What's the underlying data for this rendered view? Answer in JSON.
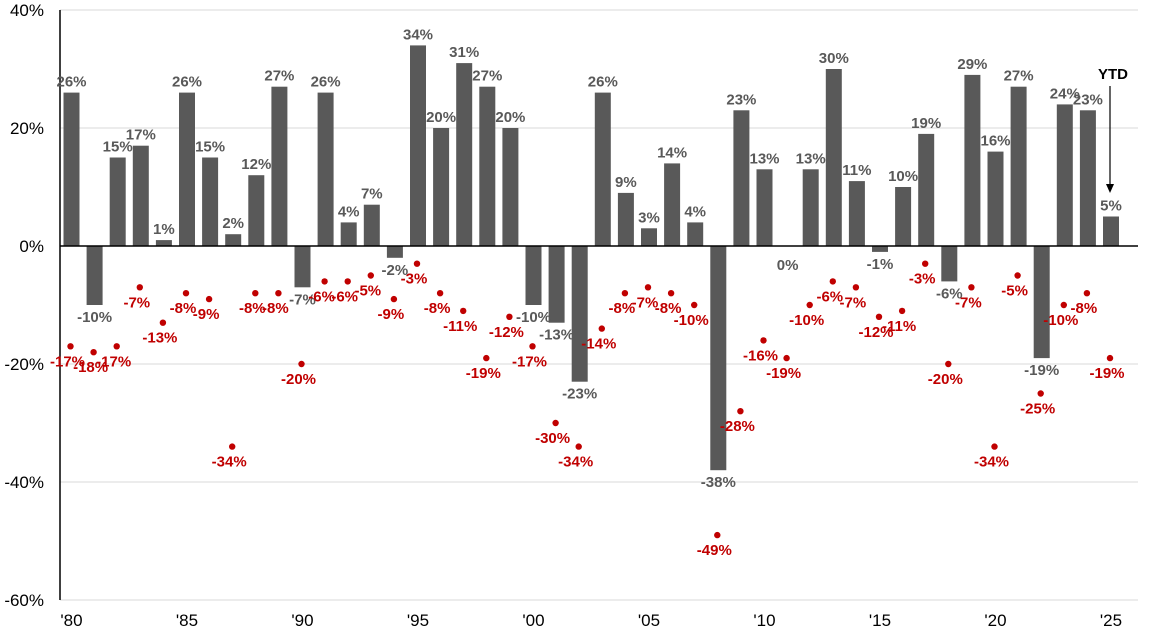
{
  "chart_data": {
    "type": "bar",
    "x": [
      1980,
      1981,
      1982,
      1983,
      1984,
      1985,
      1986,
      1987,
      1988,
      1989,
      1990,
      1991,
      1992,
      1993,
      1994,
      1995,
      1996,
      1997,
      1998,
      1999,
      2000,
      2001,
      2002,
      2003,
      2004,
      2005,
      2006,
      2007,
      2008,
      2009,
      2010,
      2011,
      2012,
      2013,
      2014,
      2015,
      2016,
      2017,
      2018,
      2019,
      2020,
      2021,
      2022,
      2023,
      2024,
      2025
    ],
    "series": [
      {
        "kind": "bar",
        "color": "#595959",
        "values": [
          26,
          -10,
          15,
          17,
          1,
          26,
          15,
          2,
          12,
          27,
          -7,
          26,
          4,
          7,
          -2,
          34,
          20,
          31,
          27,
          20,
          -10,
          -13,
          -23,
          26,
          9,
          3,
          14,
          4,
          -38,
          23,
          13,
          0,
          13,
          30,
          11,
          -1,
          10,
          19,
          -6,
          29,
          16,
          27,
          -19,
          24,
          23,
          5
        ],
        "labels": [
          "26%",
          "-10%",
          "15%",
          "17%",
          "1%",
          "26%",
          "15%",
          "2%",
          "12%",
          "27%",
          "-7%",
          "26%",
          "4%",
          "7%",
          "-2%",
          "34%",
          "20%",
          "31%",
          "27%",
          "20%",
          "-10%",
          "-13%",
          "-23%",
          "26%",
          "9%",
          "3%",
          "14%",
          "4%",
          "-38%",
          "23%",
          "13%",
          "0%",
          "13%",
          "30%",
          "11%",
          "-1%",
          "10%",
          "19%",
          "-6%",
          "29%",
          "16%",
          "27%",
          "-19%",
          "24%",
          "23%",
          "5%"
        ]
      },
      {
        "kind": "point",
        "color": "#c00000",
        "values": [
          -17,
          -18,
          -17,
          -7,
          -13,
          -8,
          -9,
          -34,
          -8,
          -8,
          -20,
          -6,
          -6,
          -5,
          -9,
          -3,
          -8,
          -11,
          -19,
          -12,
          -17,
          -30,
          -34,
          -14,
          -8,
          -7,
          -8,
          -10,
          -49,
          -28,
          -16,
          -19,
          -10,
          -6,
          -7,
          -12,
          -11,
          -3,
          -20,
          -7,
          -34,
          -5,
          -25,
          -10,
          -8,
          -19
        ],
        "labels": [
          "-17%",
          "-18%",
          "-17%",
          "-7%",
          "-13%",
          "-8%",
          "-9%",
          "-34%",
          "-8%",
          "-8%",
          "-20%",
          "-6%",
          "-6%",
          "-5%",
          "-9%",
          "-3%",
          "-8%",
          "-11%",
          "-19%",
          "-12%",
          "-17%",
          "-30%",
          "-34%",
          "-14%",
          "-8%",
          "-7%",
          "-8%",
          "-10%",
          "-49%",
          "-28%",
          "-16%",
          "-19%",
          "-10%",
          "-6%",
          "-7%",
          "-12%",
          "-11%",
          "-3%",
          "-20%",
          "-7%",
          "-34%",
          "-5%",
          "-25%",
          "-10%",
          "-8%",
          "-19%"
        ]
      }
    ],
    "yticks": [
      40,
      20,
      0,
      -20,
      -40,
      -60
    ],
    "ytick_labels": [
      "40%",
      "20%",
      "0%",
      "-20%",
      "-40%",
      "-60%"
    ],
    "ylim": [
      -60,
      40
    ],
    "xticks": [
      1980,
      1985,
      1990,
      1995,
      2000,
      2005,
      2010,
      2015,
      2020,
      2025
    ],
    "xtick_labels": [
      "'80",
      "'85",
      "'90",
      "'95",
      "'00",
      "'05",
      "'10",
      "'15",
      "'20",
      "'25"
    ],
    "grid": true,
    "annotation": {
      "text": "YTD",
      "year": 2025
    }
  }
}
